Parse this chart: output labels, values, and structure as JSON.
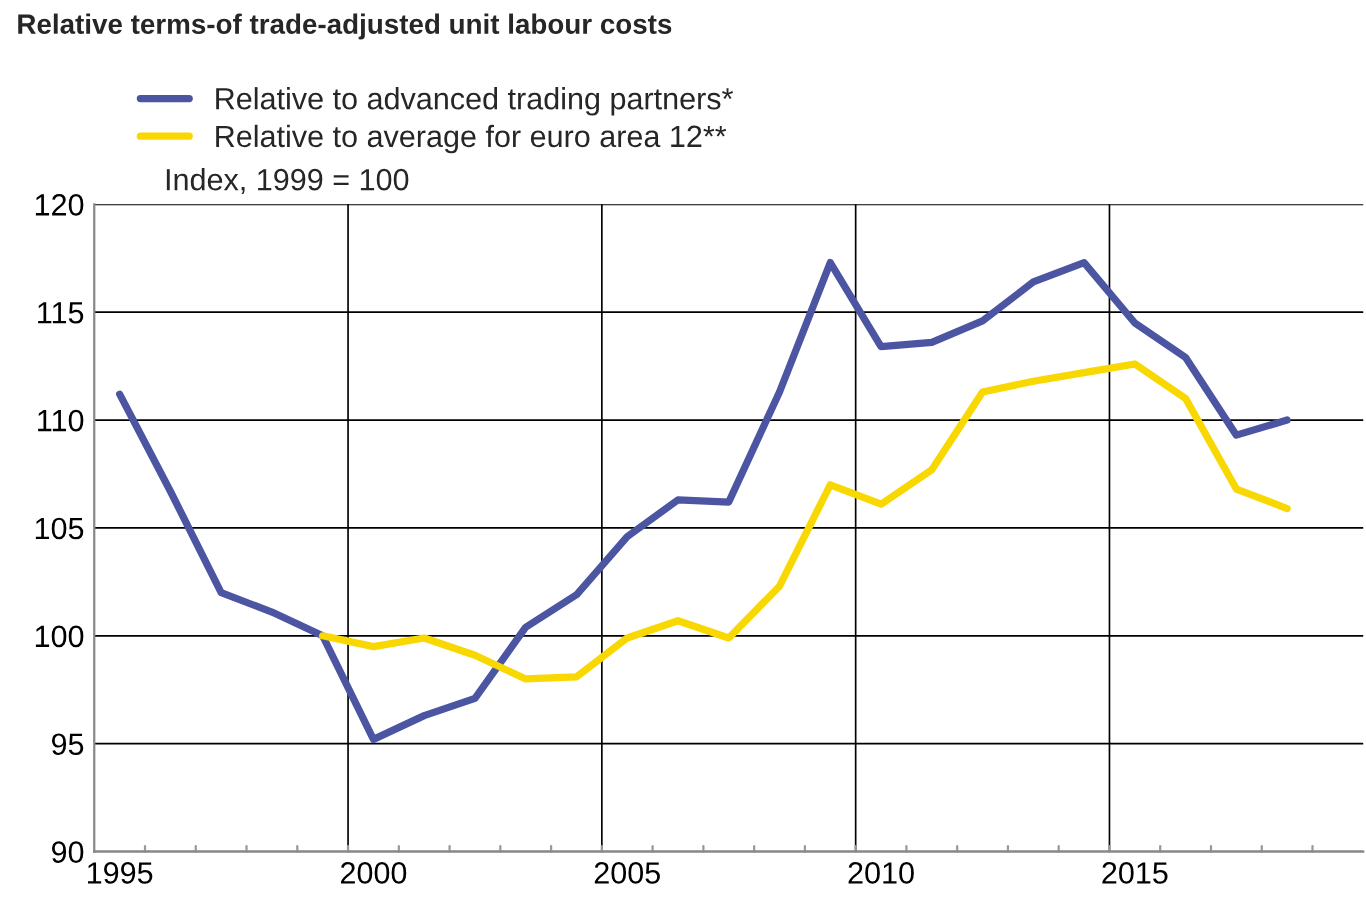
{
  "chart_data": {
    "type": "line",
    "title": "Relative terms-of trade-adjusted unit labour costs",
    "ylabel": "Index, 1999 = 100",
    "x": [
      1995,
      1996,
      1997,
      1998,
      1999,
      2000,
      2001,
      2002,
      2003,
      2004,
      2005,
      2006,
      2007,
      2008,
      2009,
      2010,
      2011,
      2012,
      2013,
      2014,
      2015,
      2016,
      2017,
      2018
    ],
    "series": [
      {
        "name": "Relative to advanced trading partners*",
        "color": "#4b55a2",
        "values": [
          111.2,
          106.7,
          102.0,
          101.1,
          100,
          95.2,
          96.3,
          97.1,
          100.4,
          101.9,
          104.6,
          106.3,
          106.2,
          111.3,
          117.3,
          113.4,
          113.6,
          114.6,
          116.4,
          117.3,
          114.5,
          112.9,
          109.3,
          110.0
        ]
      },
      {
        "name": "Relative to average for euro area 12**",
        "color": "#f8d800",
        "values": [
          null,
          null,
          null,
          null,
          100,
          99.5,
          99.9,
          99.1,
          98.0,
          98.1,
          99.9,
          100.7,
          99.9,
          102.3,
          107.0,
          106.1,
          107.7,
          111.3,
          111.8,
          112.2,
          112.6,
          111.0,
          106.8,
          105.9
        ]
      }
    ],
    "xlim": [
      1994.5,
      2019.5
    ],
    "xticks": [
      1995,
      2000,
      2005,
      2010,
      2015
    ],
    "ylim": [
      90,
      120
    ],
    "yticks": [
      90,
      95,
      100,
      105,
      110,
      115,
      120
    ],
    "ref_lines": [
      {
        "axis": "x",
        "value": 1999.5,
        "color": "#000000"
      },
      {
        "axis": "x",
        "value": 2004.5,
        "color": "#000000"
      },
      {
        "axis": "x",
        "value": 2009.5,
        "color": "#000000"
      },
      {
        "axis": "x",
        "value": 2014.5,
        "color": "#000000"
      }
    ],
    "grid": "y",
    "legend": "top",
    "line_style": "solid",
    "marker": "none"
  }
}
